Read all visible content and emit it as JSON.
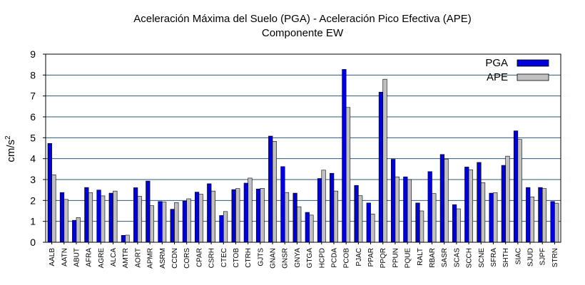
{
  "chart_data": {
    "type": "bar",
    "title": "Aceleración Máxima del Suelo (PGA) -  Aceleración Pico Efectiva (APE)",
    "subtitle": "Componente EW",
    "ylabel": "cm/s",
    "ylabel_superscript": "2",
    "xlabel": "",
    "ylim": [
      0,
      9
    ],
    "yticks": [
      0,
      1,
      2,
      3,
      4,
      5,
      6,
      7,
      8,
      9
    ],
    "grid": true,
    "legend_position": "top-right",
    "categories": [
      "AALB",
      "AATN",
      "ABUT",
      "AFRA",
      "AGRE",
      "ALCA",
      "AMTR",
      "AORT",
      "APMR",
      "ASRM",
      "CCDN",
      "CORS",
      "CPAR",
      "CSRH",
      "CTEC",
      "CTOB",
      "CTRH",
      "GJTS",
      "GNAN",
      "GNSR",
      "GNYA",
      "GTGA",
      "HCPD",
      "PCDA",
      "PCOB",
      "PJAC",
      "PPAR",
      "PPQR",
      "PPUN",
      "PQUE",
      "RALT",
      "RBAR",
      "SASR",
      "SCAS",
      "SCCH",
      "SCNE",
      "SFRA",
      "SHTH",
      "SIAC",
      "SJUD",
      "SJPF",
      "STRN"
    ],
    "series": [
      {
        "name": "PGA",
        "color": "#0000dd",
        "values": [
          4.73,
          2.38,
          1.05,
          2.62,
          2.5,
          2.35,
          0.33,
          2.61,
          2.93,
          1.95,
          1.58,
          1.97,
          2.4,
          2.8,
          1.28,
          2.52,
          2.83,
          2.55,
          5.08,
          3.62,
          2.35,
          1.43,
          3.05,
          3.3,
          8.27,
          2.72,
          1.88,
          7.18,
          3.97,
          3.13,
          1.88,
          3.38,
          4.2,
          1.8,
          3.6,
          3.82,
          2.35,
          3.68,
          5.33,
          2.62,
          2.62,
          1.95
        ]
      },
      {
        "name": "APE",
        "color": "#c0c0c0",
        "values": [
          3.23,
          2.05,
          1.18,
          2.37,
          2.22,
          2.45,
          0.34,
          2.2,
          1.75,
          1.92,
          1.9,
          2.08,
          2.3,
          2.45,
          1.47,
          2.57,
          3.07,
          2.58,
          4.83,
          2.38,
          1.7,
          1.3,
          3.45,
          2.45,
          6.45,
          2.23,
          1.35,
          7.8,
          3.13,
          3.0,
          1.5,
          2.33,
          3.98,
          1.6,
          3.47,
          2.85,
          2.37,
          4.12,
          4.92,
          2.17,
          2.57,
          1.87
        ]
      }
    ]
  }
}
